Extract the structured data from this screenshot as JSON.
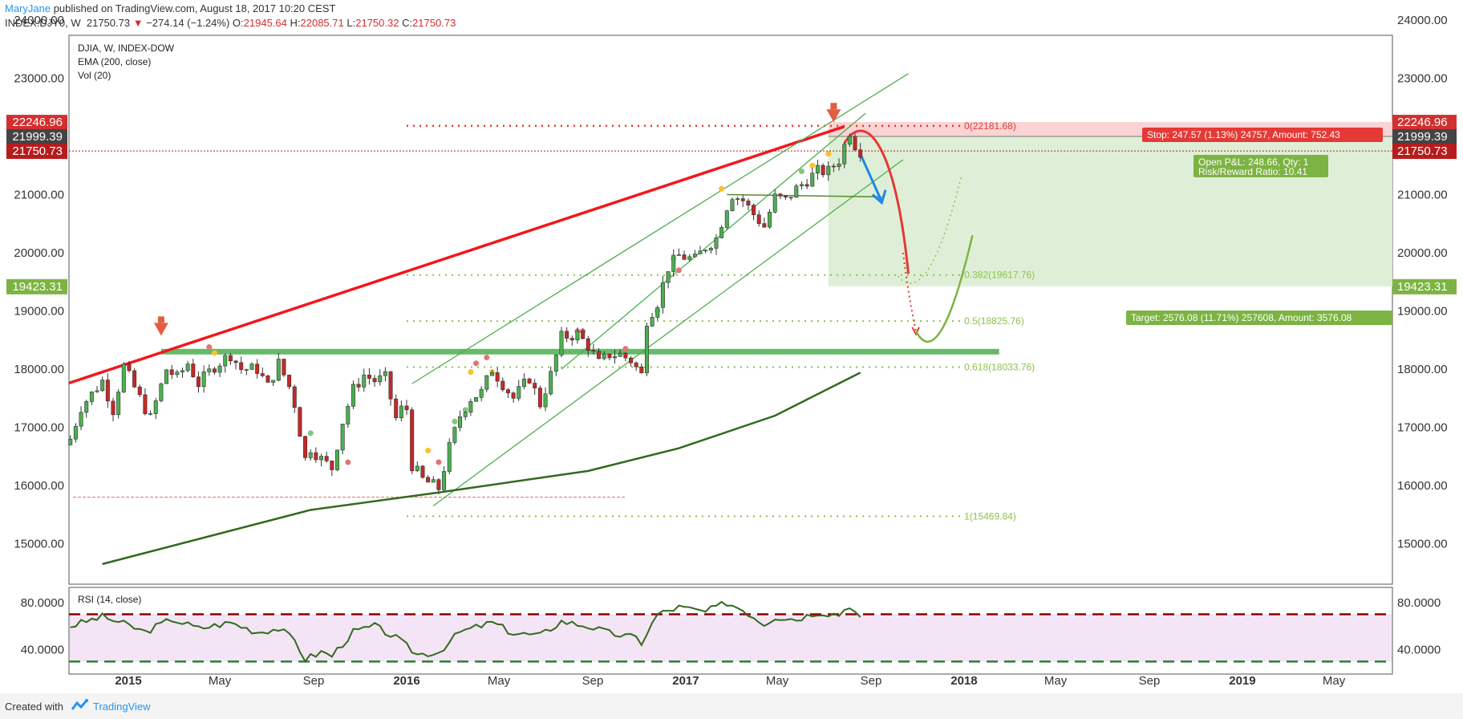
{
  "header": {
    "author": "MaryJane",
    "published_text": " published on TradingView.com, August 18, 2017 10:20 CEST",
    "symbol": "INDEX:DJY0, W",
    "last": "21750.73",
    "change": "−274.14 (−1.24%)",
    "o_label": "O:",
    "o_value": "21945.64",
    "h_label": "H:",
    "h_value": "22085.71",
    "l_label": "L:",
    "l_value": "21750.32",
    "c_label": "C:",
    "c_value": "21750.73"
  },
  "legend": {
    "line1": "DJIA, W, INDEX-DOW",
    "line2": "EMA (200, close)",
    "line3": "Vol (20)"
  },
  "rsi_label": "RSI (14, close)",
  "footer": {
    "created_with": "Created with",
    "brand": "TradingView"
  },
  "colors": {
    "up": "#4caf50",
    "down": "#c62828",
    "ema": "#33691e",
    "red_trend": "#f2181d",
    "green_line": "#4caf50",
    "stop_zone": "#f9c9c9",
    "target_zone": "#dcedd3",
    "rsi_band": "#f3e5f5",
    "price_tag_red": "#d32f2f",
    "price_tag_dark": "#444444",
    "price_tag_darkred": "#b71c1c",
    "price_tag_green": "#7cb342"
  },
  "chart_data": {
    "type": "candlestick",
    "title": "DJIA, W, INDEX-DOW",
    "ylim": [
      14650,
      24200
    ],
    "price_ticks": [
      "15000.00",
      "16000.00",
      "17000.00",
      "18000.00",
      "19000.00",
      "20000.00",
      "21000.00",
      "22000.00",
      "23000.00",
      "24000.00"
    ],
    "time_labels": [
      {
        "label": "2015",
        "date": "2015-01-01",
        "bold": true
      },
      {
        "label": "May",
        "date": "2015-05-01",
        "bold": false
      },
      {
        "label": "Sep",
        "date": "2015-09-01",
        "bold": false
      },
      {
        "label": "2016",
        "date": "2016-01-01",
        "bold": true
      },
      {
        "label": "May",
        "date": "2016-05-01",
        "bold": false
      },
      {
        "label": "Sep",
        "date": "2016-09-01",
        "bold": false
      },
      {
        "label": "2017",
        "date": "2017-01-01",
        "bold": true
      },
      {
        "label": "May",
        "date": "2017-05-01",
        "bold": false
      },
      {
        "label": "Sep",
        "date": "2017-09-01",
        "bold": false
      },
      {
        "label": "2018",
        "date": "2018-01-01",
        "bold": true
      },
      {
        "label": "May",
        "date": "2018-05-01",
        "bold": false
      },
      {
        "label": "Sep",
        "date": "2018-09-01",
        "bold": false
      },
      {
        "label": "2019",
        "date": "2019-01-01",
        "bold": true
      },
      {
        "label": "May",
        "date": "2019-05-01",
        "bold": false
      }
    ],
    "price_tags": [
      {
        "value": 22246.96,
        "label": "22246.96",
        "color": "#d32f2f"
      },
      {
        "value": 21999.39,
        "label": "21999.39",
        "color": "#444444"
      },
      {
        "value": 21750.73,
        "label": "21750.73",
        "color": "#b71c1c"
      },
      {
        "value": 19423.31,
        "label": "19423.31",
        "color": "#7cb342"
      }
    ],
    "close_path": [
      [
        "2014-10-17",
        16800
      ],
      [
        "2014-10-31",
        17350
      ],
      [
        "2014-11-28",
        17800
      ],
      [
        "2014-12-12",
        17300
      ],
      [
        "2014-12-26",
        18050
      ],
      [
        "2015-01-16",
        17500
      ],
      [
        "2015-01-30",
        17150
      ],
      [
        "2015-02-20",
        18000
      ],
      [
        "2015-03-06",
        17850
      ],
      [
        "2015-03-20",
        18100
      ],
      [
        "2015-04-03",
        17750
      ],
      [
        "2015-04-24",
        18050
      ],
      [
        "2015-05-15",
        18250
      ],
      [
        "2015-05-29",
        18000
      ],
      [
        "2015-06-19",
        18000
      ],
      [
        "2015-07-03",
        17700
      ],
      [
        "2015-07-17",
        18100
      ],
      [
        "2015-07-31",
        17700
      ],
      [
        "2015-08-07",
        17400
      ],
      [
        "2015-08-21",
        16450
      ],
      [
        "2015-08-28",
        16650
      ],
      [
        "2015-09-11",
        16450
      ],
      [
        "2015-09-25",
        16300
      ],
      [
        "2015-10-09",
        17100
      ],
      [
        "2015-10-23",
        17650
      ],
      [
        "2015-11-06",
        17900
      ],
      [
        "2015-11-20",
        17800
      ],
      [
        "2015-12-04",
        17850
      ],
      [
        "2015-12-18",
        17150
      ],
      [
        "2015-12-31",
        17450
      ],
      [
        "2016-01-08",
        16350
      ],
      [
        "2016-01-22",
        16100
      ],
      [
        "2016-02-12",
        15950
      ],
      [
        "2016-02-26",
        16650
      ],
      [
        "2016-03-11",
        17200
      ],
      [
        "2016-03-25",
        17500
      ],
      [
        "2016-04-08",
        17600
      ],
      [
        "2016-04-22",
        18000
      ],
      [
        "2016-05-06",
        17750
      ],
      [
        "2016-05-20",
        17500
      ],
      [
        "2016-06-10",
        17850
      ],
      [
        "2016-06-24",
        17400
      ],
      [
        "2016-07-08",
        17900
      ],
      [
        "2016-07-22",
        18550
      ],
      [
        "2016-08-12",
        18600
      ],
      [
        "2016-08-26",
        18400
      ],
      [
        "2016-09-09",
        18100
      ],
      [
        "2016-09-23",
        18250
      ],
      [
        "2016-10-07",
        18250
      ],
      [
        "2016-10-21",
        18150
      ],
      [
        "2016-11-04",
        17900
      ],
      [
        "2016-11-11",
        18850
      ],
      [
        "2016-11-25",
        19150
      ],
      [
        "2016-12-09",
        19750
      ],
      [
        "2016-12-23",
        19950
      ],
      [
        "2017-01-13",
        19880
      ],
      [
        "2017-01-27",
        20100
      ],
      [
        "2017-02-10",
        20250
      ],
      [
        "2017-02-24",
        20800
      ],
      [
        "2017-03-03",
        21000
      ],
      [
        "2017-03-17",
        20900
      ],
      [
        "2017-03-31",
        20660
      ],
      [
        "2017-04-14",
        20450
      ],
      [
        "2017-04-28",
        20950
      ],
      [
        "2017-05-12",
        20900
      ],
      [
        "2017-05-26",
        21100
      ],
      [
        "2017-06-09",
        21250
      ],
      [
        "2017-06-23",
        21400
      ],
      [
        "2017-07-07",
        21400
      ],
      [
        "2017-07-21",
        21600
      ],
      [
        "2017-08-04",
        22090
      ],
      [
        "2017-08-11",
        21860
      ],
      [
        "2017-08-18",
        21750
      ]
    ],
    "last_bar": {
      "date": "2017-08-18",
      "open": 21945.64,
      "high": 22085.71,
      "low": 21750.32,
      "close": 21750.73
    },
    "ema200_path": [
      [
        "2014-11-28",
        14650
      ],
      [
        "2015-08-28",
        15580
      ],
      [
        "2016-02-12",
        15880
      ],
      [
        "2016-08-26",
        16250
      ],
      [
        "2016-12-23",
        16640
      ],
      [
        "2017-04-28",
        17200
      ],
      [
        "2017-08-18",
        17940
      ]
    ],
    "fib_levels": [
      {
        "level": "0",
        "value": 22181.68,
        "label": "0(22181.68)",
        "color": "#e53935"
      },
      {
        "level": "0.382",
        "value": 19617.76,
        "label": "0.382(19617.76)",
        "color": "#8bc34a"
      },
      {
        "level": "0.5",
        "value": 18825.76,
        "label": "0.5(18825.76)",
        "color": "#8bc34a"
      },
      {
        "level": "0.618",
        "value": 18033.76,
        "label": "0.618(18033.76)",
        "color": "#8bc34a"
      },
      {
        "level": "1",
        "value": 15469.84,
        "label": "1(15469.84)",
        "color": "#8bc34a"
      }
    ],
    "position": {
      "entry": 21999.39,
      "stop": 22246.96,
      "target": 19423.31,
      "stop_label": "Stop: 247.57 (1.13%) 24757, Amount: 752.43",
      "pnl_label_1": "Open P&L: 248.66, Qty: 1",
      "pnl_label_2": "Risk/Reward Ratio: 10.41",
      "target_label": "Target: 2576.08 (11.71%) 257608, Amount: 3576.08"
    },
    "support_line": {
      "value": 18300,
      "from": "2015-02-13",
      "to": "2018-02-16"
    },
    "rsi": {
      "title": "RSI (14, close)",
      "ticks": [
        "80.0000",
        "40.0000"
      ],
      "upper": 70,
      "lower": 30,
      "path": [
        [
          "2014-10-17",
          60
        ],
        [
          "2014-11-28",
          68
        ],
        [
          "2014-12-26",
          62
        ],
        [
          "2015-01-23",
          55
        ],
        [
          "2015-02-27",
          66
        ],
        [
          "2015-04-03",
          58
        ],
        [
          "2015-05-15",
          63
        ],
        [
          "2015-06-19",
          55
        ],
        [
          "2015-07-17",
          58
        ],
        [
          "2015-08-07",
          48
        ],
        [
          "2015-08-21",
          32
        ],
        [
          "2015-09-11",
          38
        ],
        [
          "2015-09-25",
          35
        ],
        [
          "2015-10-23",
          55
        ],
        [
          "2015-11-20",
          60
        ],
        [
          "2015-12-18",
          50
        ],
        [
          "2016-01-15",
          36
        ],
        [
          "2016-02-12",
          38
        ],
        [
          "2016-03-11",
          55
        ],
        [
          "2016-04-22",
          63
        ],
        [
          "2016-05-20",
          54
        ],
        [
          "2016-06-24",
          52
        ],
        [
          "2016-07-22",
          64
        ],
        [
          "2016-08-26",
          60
        ],
        [
          "2016-09-23",
          54
        ],
        [
          "2016-10-28",
          50
        ],
        [
          "2016-11-04",
          46
        ],
        [
          "2016-11-25",
          70
        ],
        [
          "2016-12-23",
          76
        ],
        [
          "2017-01-27",
          72
        ],
        [
          "2017-02-24",
          80
        ],
        [
          "2017-03-17",
          74
        ],
        [
          "2017-04-14",
          62
        ],
        [
          "2017-04-28",
          68
        ],
        [
          "2017-05-26",
          66
        ],
        [
          "2017-06-23",
          72
        ],
        [
          "2017-07-21",
          70
        ],
        [
          "2017-08-04",
          78
        ],
        [
          "2017-08-18",
          66
        ]
      ]
    }
  }
}
